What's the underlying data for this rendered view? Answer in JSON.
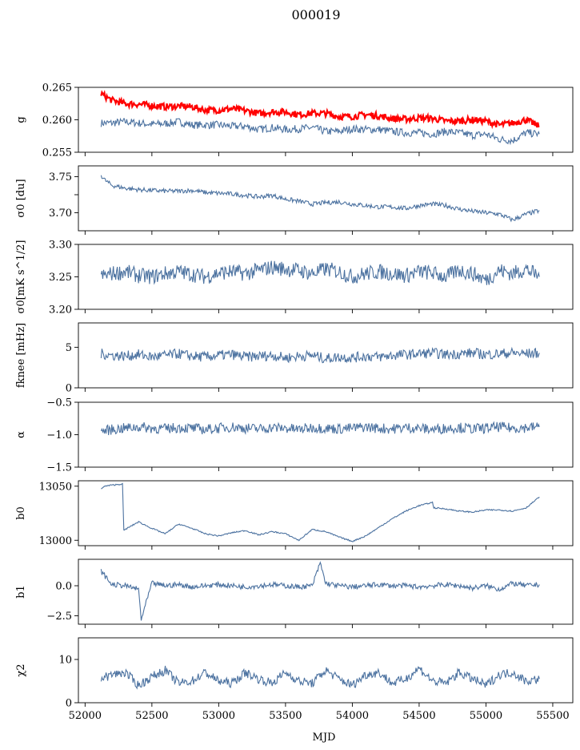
{
  "title": "000019",
  "chart_data": {
    "type": "line",
    "title": "000019",
    "xlabel": "MJD",
    "xlim": [
      51950,
      55650
    ],
    "xticks": [
      52000,
      52500,
      53000,
      53500,
      54000,
      54500,
      55000,
      55500
    ],
    "xtick_labels": [
      "52000",
      "52500",
      "53000",
      "53500",
      "54000",
      "54500",
      "55000",
      "55500"
    ],
    "x_range": [
      52120,
      55400
    ],
    "colors": {
      "primary": "#4c72a0",
      "highlight": "#ff0000"
    },
    "panels": [
      {
        "id": "g",
        "ylabel": "g",
        "ylim": [
          0.255,
          0.265
        ],
        "yticks": [
          0.255,
          0.26,
          0.265
        ],
        "ytick_labels": [
          "0.255",
          "0.260",
          "0.265"
        ],
        "series": [
          {
            "color": "#4c72a0",
            "x": [
              52120,
              52200,
              52300,
              52400,
              52500,
              52600,
              52700,
              52800,
              52900,
              53000,
              53100,
              53200,
              53300,
              53400,
              53500,
              53600,
              53700,
              53800,
              53900,
              54000,
              54100,
              54200,
              54300,
              54400,
              54500,
              54600,
              54700,
              54800,
              54900,
              55000,
              55100,
              55200,
              55300,
              55400
            ],
            "y": [
              0.2595,
              0.2595,
              0.2597,
              0.2595,
              0.2593,
              0.2594,
              0.2597,
              0.2592,
              0.2592,
              0.2592,
              0.259,
              0.259,
              0.2585,
              0.2588,
              0.2585,
              0.2586,
              0.2588,
              0.2582,
              0.2582,
              0.2586,
              0.2585,
              0.2585,
              0.2582,
              0.258,
              0.258,
              0.2578,
              0.2582,
              0.258,
              0.2576,
              0.2578,
              0.257,
              0.2568,
              0.258,
              0.2578
            ]
          },
          {
            "color": "#ff0000",
            "x": [
              52120,
              52200,
              52300,
              52400,
              52500,
              52600,
              52700,
              52800,
              52900,
              53000,
              53100,
              53200,
              53300,
              53400,
              53500,
              53600,
              53700,
              53800,
              53900,
              54000,
              54100,
              54200,
              54300,
              54400,
              54500,
              54600,
              54700,
              54800,
              54900,
              55000,
              55100,
              55200,
              55300,
              55400
            ],
            "y": [
              0.264,
              0.263,
              0.2625,
              0.2624,
              0.2622,
              0.262,
              0.2621,
              0.262,
              0.2615,
              0.2615,
              0.2617,
              0.2614,
              0.261,
              0.2612,
              0.2612,
              0.2608,
              0.261,
              0.261,
              0.2605,
              0.2605,
              0.2608,
              0.2606,
              0.2602,
              0.2601,
              0.2603,
              0.2602,
              0.2598,
              0.2598,
              0.26,
              0.2598,
              0.2592,
              0.2595,
              0.26,
              0.259
            ]
          }
        ]
      },
      {
        "id": "sigma0_du",
        "ylabel": "σ0 [du]",
        "ylim": [
          3.675,
          3.765
        ],
        "yticks": [
          3.7,
          3.725,
          3.75
        ],
        "ytick_labels": [
          "3.70",
          "",
          "3.75"
        ],
        "series": [
          {
            "color": "#4c72a0",
            "x": [
              52120,
              52150,
              52200,
              52300,
              52400,
              52500,
              52600,
              52700,
              52800,
              52900,
              53000,
              53100,
              53200,
              53300,
              53400,
              53500,
              53600,
              53700,
              53800,
              53900,
              54000,
              54100,
              54200,
              54300,
              54400,
              54500,
              54600,
              54700,
              54800,
              54900,
              55000,
              55100,
              55200,
              55300,
              55400
            ],
            "y": [
              3.752,
              3.745,
              3.738,
              3.734,
              3.732,
              3.731,
              3.73,
              3.73,
              3.731,
              3.728,
              3.727,
              3.726,
              3.724,
              3.722,
              3.724,
              3.719,
              3.716,
              3.712,
              3.714,
              3.715,
              3.712,
              3.71,
              3.708,
              3.708,
              3.706,
              3.71,
              3.712,
              3.71,
              3.705,
              3.702,
              3.7,
              3.698,
              3.69,
              3.698,
              3.703
            ]
          }
        ]
      },
      {
        "id": "sigma0_mk",
        "ylabel": "σ0[mK s^1/2]",
        "ylim": [
          3.2,
          3.3
        ],
        "yticks": [
          3.2,
          3.25,
          3.3
        ],
        "ytick_labels": [
          "3.20",
          "3.25",
          "3.30"
        ],
        "series": [
          {
            "color": "#4c72a0",
            "x": [
              52120,
              52200,
              52300,
              52400,
              52500,
              52600,
              52700,
              52800,
              52900,
              53000,
              53100,
              53200,
              53300,
              53400,
              53500,
              53600,
              53700,
              53800,
              53900,
              54000,
              54100,
              54200,
              54300,
              54400,
              54500,
              54600,
              54700,
              54800,
              54900,
              55000,
              55100,
              55200,
              55300,
              55400
            ],
            "y": [
              3.25,
              3.255,
              3.258,
              3.252,
              3.25,
              3.255,
              3.258,
              3.254,
              3.25,
              3.256,
              3.258,
              3.255,
              3.26,
              3.265,
              3.262,
              3.26,
              3.255,
              3.262,
              3.258,
              3.25,
              3.255,
              3.258,
              3.255,
              3.252,
              3.258,
              3.256,
              3.25,
              3.26,
              3.255,
              3.245,
              3.26,
              3.255,
              3.262,
              3.25
            ]
          }
        ]
      },
      {
        "id": "fknee",
        "ylabel": "fknee [mHz]",
        "ylim": [
          0,
          8
        ],
        "yticks": [
          0,
          5
        ],
        "ytick_labels": [
          "0",
          "5"
        ],
        "series": [
          {
            "color": "#4c72a0",
            "x": [
              52120,
              52200,
              52300,
              52400,
              52500,
              52600,
              52700,
              52800,
              52900,
              53000,
              53100,
              53200,
              53300,
              53400,
              53500,
              53600,
              53700,
              53800,
              53900,
              54000,
              54100,
              54200,
              54300,
              54400,
              54500,
              54600,
              54700,
              54800,
              54900,
              55000,
              55100,
              55200,
              55300,
              55400
            ],
            "y": [
              4.2,
              4.0,
              3.9,
              4.1,
              3.8,
              4.0,
              4.2,
              3.9,
              3.8,
              4.0,
              4.1,
              3.8,
              3.9,
              4.0,
              3.7,
              3.9,
              4.0,
              3.6,
              3.8,
              3.7,
              3.9,
              3.8,
              4.0,
              4.1,
              4.2,
              4.3,
              4.1,
              4.2,
              4.3,
              4.1,
              4.2,
              4.3,
              4.2,
              4.3
            ]
          }
        ]
      },
      {
        "id": "alpha",
        "ylabel": "α",
        "ylim": [
          -1.5,
          -0.5
        ],
        "yticks": [
          -1.5,
          -1.0,
          -0.5
        ],
        "ytick_labels": [
          "−1.5",
          "−1.0",
          "−0.5"
        ],
        "series": [
          {
            "color": "#4c72a0",
            "x": [
              52120,
              52200,
              52300,
              52400,
              52500,
              52600,
              52700,
              52800,
              52900,
              53000,
              53100,
              53200,
              53300,
              53400,
              53500,
              53600,
              53700,
              53800,
              53900,
              54000,
              54100,
              54200,
              54300,
              54400,
              54500,
              54600,
              54700,
              54800,
              54900,
              55000,
              55100,
              55200,
              55300,
              55400
            ],
            "y": [
              -0.95,
              -0.92,
              -0.9,
              -0.88,
              -0.9,
              -0.91,
              -0.89,
              -0.9,
              -0.92,
              -0.9,
              -0.88,
              -0.9,
              -0.91,
              -0.89,
              -0.9,
              -0.92,
              -0.89,
              -0.9,
              -0.91,
              -0.9,
              -0.88,
              -0.9,
              -0.91,
              -0.89,
              -0.9,
              -0.92,
              -0.9,
              -0.89,
              -0.91,
              -0.9,
              -0.88,
              -0.9,
              -0.89,
              -0.88
            ]
          }
        ]
      },
      {
        "id": "b0",
        "ylabel": "b0",
        "ylim": [
          12995,
          13055
        ],
        "yticks": [
          13000,
          13050
        ],
        "ytick_labels": [
          "13000",
          "13050"
        ],
        "series": [
          {
            "color": "#4c72a0",
            "x": [
              52120,
              52150,
              52200,
              52280,
              52290,
              52300,
              52400,
              52500,
              52600,
              52700,
              52800,
              52900,
              53000,
              53100,
              53200,
              53300,
              53400,
              53500,
              53600,
              53700,
              53800,
              53900,
              54000,
              54100,
              54200,
              54300,
              54400,
              54500,
              54600,
              54610,
              54700,
              54800,
              54900,
              55000,
              55100,
              55200,
              55300,
              55400
            ],
            "y": [
              13048,
              13050,
              13051,
              13052,
              13009,
              13010,
              13017,
              13011,
              13006,
              13015,
              13011,
              13006,
              13004,
              13007,
              13009,
              13005,
              13008,
              13006,
              13000,
              13010,
              13008,
              13003,
              12999,
              13004,
              13012,
              13020,
              13027,
              13032,
              13035,
              13030,
              13029,
              13027,
              13026,
              13028,
              13028,
              13027,
              13030,
              13040
            ]
          }
        ]
      },
      {
        "id": "b1",
        "ylabel": "b1",
        "ylim": [
          -3.2,
          2.2
        ],
        "yticks": [
          -2.5,
          0.0
        ],
        "ytick_labels": [
          "−2.5",
          "0.0"
        ],
        "series": [
          {
            "color": "#4c72a0",
            "x": [
              52120,
              52200,
              52300,
              52400,
              52420,
              52500,
              52600,
              52700,
              52800,
              52900,
              53000,
              53100,
              53200,
              53300,
              53400,
              53500,
              53600,
              53700,
              53760,
              53800,
              53900,
              54000,
              54100,
              54200,
              54300,
              54400,
              54500,
              54600,
              54700,
              54800,
              54900,
              55000,
              55100,
              55200,
              55300,
              55400
            ],
            "y": [
              1.2,
              0.1,
              0.0,
              -0.3,
              -2.8,
              0.2,
              0.0,
              0.1,
              -0.1,
              0.0,
              0.1,
              0.0,
              -0.1,
              0.0,
              0.1,
              0.0,
              -0.1,
              0.0,
              1.9,
              0.2,
              0.0,
              -0.1,
              0.0,
              0.1,
              0.0,
              0.0,
              -0.1,
              0.0,
              0.1,
              0.0,
              -0.2,
              0.0,
              -0.3,
              0.2,
              0.0,
              0.1
            ]
          }
        ]
      },
      {
        "id": "chi2",
        "ylabel": "χ2",
        "ylim": [
          0,
          15
        ],
        "yticks": [
          0,
          10
        ],
        "ytick_labels": [
          "0",
          "10"
        ],
        "series": [
          {
            "color": "#4c72a0",
            "x": [
              52120,
              52200,
              52300,
              52400,
              52500,
              52600,
              52700,
              52800,
              52900,
              53000,
              53100,
              53200,
              53300,
              53400,
              53500,
              53600,
              53700,
              53800,
              53900,
              54000,
              54100,
              54200,
              54300,
              54400,
              54500,
              54600,
              54700,
              54800,
              54900,
              55000,
              55100,
              55200,
              55300,
              55400
            ],
            "y": [
              5.5,
              6.5,
              7.0,
              4.0,
              6.0,
              7.5,
              4.5,
              5.0,
              7.0,
              5.0,
              4.5,
              7.0,
              5.5,
              4.5,
              7.0,
              5.0,
              4.5,
              7.5,
              5.5,
              4.0,
              6.5,
              7.0,
              4.5,
              5.5,
              8.0,
              5.0,
              4.5,
              7.0,
              5.5,
              4.0,
              6.5,
              7.0,
              5.0,
              5.5
            ]
          }
        ]
      }
    ]
  }
}
